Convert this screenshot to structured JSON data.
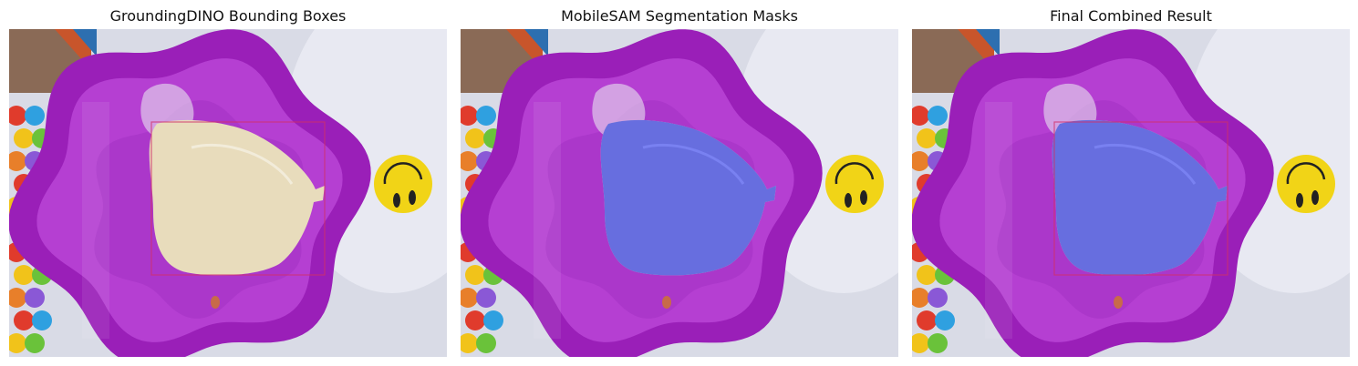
{
  "figure": {
    "panels": [
      {
        "title": "GroundingDINO Bounding Boxes",
        "show_box": true,
        "show_mask": false
      },
      {
        "title": "MobileSAM Segmentation Masks",
        "show_box": false,
        "show_mask": true
      },
      {
        "title": "Final Combined Result",
        "show_box": true,
        "show_mask": true
      }
    ]
  },
  "colors": {
    "table": "#d9dbe6",
    "wall_top": "#8a6a56",
    "basin": "#9a1fb8",
    "basin_inner": "#b53fd2",
    "bag": "#e8dcbc",
    "mask": "#4b55e6",
    "box": "#d0306a",
    "smiley": "#f1d417",
    "balls": [
      "#e03b2c",
      "#2fa0e0",
      "#f1c31a",
      "#6ac23a",
      "#e87f2a",
      "#8a58d6"
    ]
  }
}
